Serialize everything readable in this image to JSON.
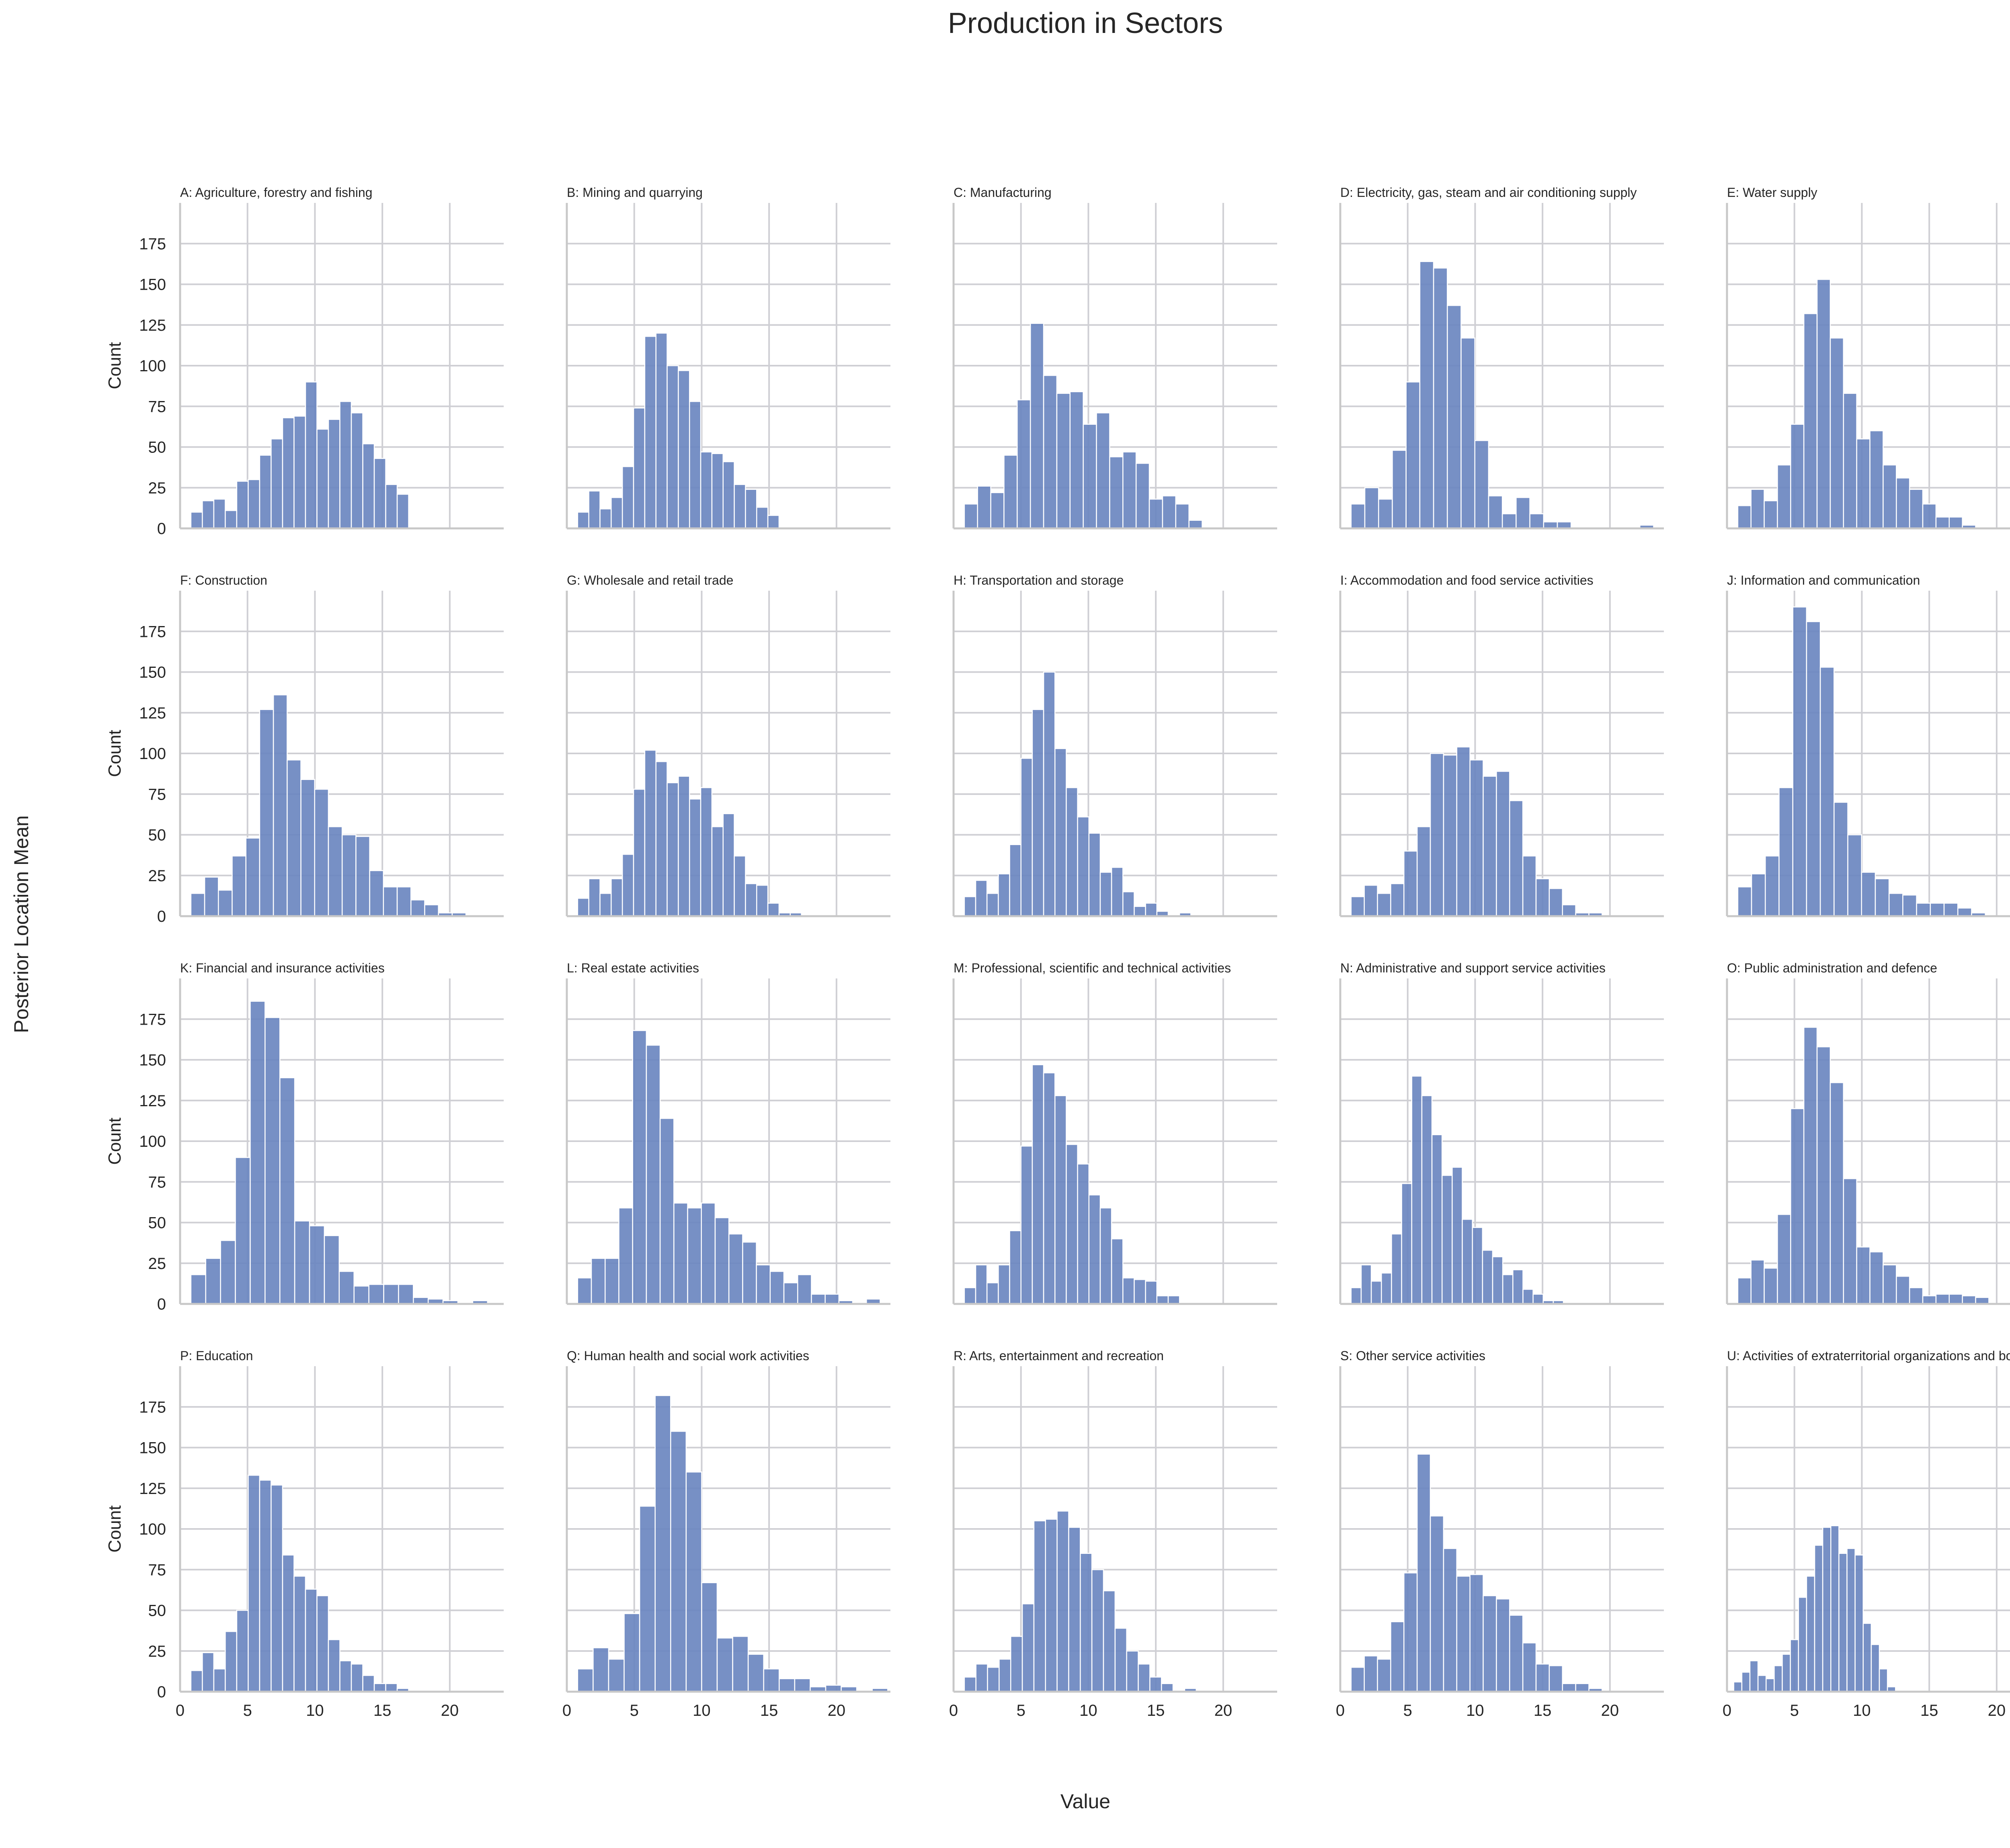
{
  "figure": {
    "title": "Production in Sectors",
    "x_label": "Value",
    "y_label": "Posterior Location Mean"
  },
  "chart_data": {
    "type": "bar",
    "subtype": "histogram-facet-grid",
    "title": "Production in Sectors",
    "xlabel": "Value",
    "ylabel": "Posterior Location Mean",
    "panel_ylabel": "Count",
    "xlim": [
      0,
      24
    ],
    "ylim": [
      0,
      200
    ],
    "x_ticks": [
      0,
      5,
      10,
      15,
      20
    ],
    "y_ticks": [
      0,
      25,
      50,
      75,
      100,
      125,
      150,
      175
    ],
    "grid": true,
    "bar_color": "#6b87c0",
    "grid_color": "#cfcfd4",
    "axis_color": "#c8c8c8",
    "panels": [
      {
        "title": "A: Agriculture, forestry and fishing",
        "bin_start": 0.8,
        "bin_width": 0.85,
        "counts": [
          10,
          17,
          18,
          11,
          29,
          30,
          45,
          55,
          68,
          69,
          90,
          61,
          67,
          78,
          71,
          52,
          43,
          27,
          21
        ]
      },
      {
        "title": "B: Mining and quarrying",
        "bin_start": 0.8,
        "bin_width": 0.83,
        "counts": [
          10,
          23,
          12,
          19,
          38,
          74,
          118,
          120,
          100,
          97,
          78,
          47,
          46,
          41,
          27,
          24,
          13,
          8
        ]
      },
      {
        "title": "C: Manufacturing",
        "bin_start": 0.8,
        "bin_width": 0.98,
        "counts": [
          15,
          26,
          22,
          45,
          79,
          126,
          94,
          83,
          84,
          64,
          71,
          44,
          47,
          40,
          18,
          20,
          15,
          5
        ]
      },
      {
        "title": "D: Electricity, gas, steam and air conditioning supply",
        "bin_start": 0.8,
        "bin_width": 1.02,
        "counts": [
          15,
          25,
          18,
          48,
          90,
          164,
          160,
          137,
          117,
          54,
          20,
          9,
          19,
          9,
          4,
          4,
          0,
          0,
          0,
          0,
          0,
          2
        ]
      },
      {
        "title": "E: Water supply",
        "bin_start": 0.8,
        "bin_width": 0.98,
        "counts": [
          14,
          24,
          17,
          39,
          64,
          132,
          153,
          117,
          83,
          55,
          60,
          39,
          31,
          24,
          15,
          7,
          7,
          2
        ]
      },
      {
        "title": "F: Construction",
        "bin_start": 0.8,
        "bin_width": 1.02,
        "counts": [
          14,
          24,
          16,
          37,
          48,
          127,
          136,
          96,
          84,
          78,
          55,
          50,
          49,
          28,
          18,
          18,
          10,
          7,
          2,
          2
        ]
      },
      {
        "title": "G: Wholesale and retail trade",
        "bin_start": 0.8,
        "bin_width": 0.83,
        "counts": [
          11,
          23,
          14,
          23,
          38,
          78,
          102,
          95,
          82,
          86,
          72,
          79,
          55,
          63,
          37,
          20,
          19,
          8,
          2,
          2
        ]
      },
      {
        "title": "H: Transportation and storage",
        "bin_start": 0.8,
        "bin_width": 0.84,
        "counts": [
          12,
          22,
          14,
          26,
          44,
          97,
          127,
          150,
          103,
          79,
          61,
          51,
          27,
          30,
          15,
          6,
          8,
          3,
          0,
          2
        ]
      },
      {
        "title": "I: Accommodation and food service activities",
        "bin_start": 0.8,
        "bin_width": 0.98,
        "counts": [
          12,
          19,
          14,
          20,
          40,
          55,
          100,
          99,
          104,
          96,
          86,
          89,
          71,
          37,
          23,
          17,
          7,
          2,
          2
        ]
      },
      {
        "title": "J: Information and communication",
        "bin_start": 0.8,
        "bin_width": 1.02,
        "counts": [
          18,
          26,
          37,
          79,
          190,
          181,
          153,
          70,
          50,
          27,
          23,
          14,
          13,
          8,
          8,
          8,
          5,
          2
        ]
      },
      {
        "title": "K: Financial and insurance activities",
        "bin_start": 0.8,
        "bin_width": 1.1,
        "counts": [
          18,
          28,
          39,
          90,
          186,
          176,
          139,
          51,
          48,
          42,
          20,
          11,
          12,
          12,
          12,
          4,
          3,
          2,
          0,
          2
        ]
      },
      {
        "title": "L: Real estate activities",
        "bin_start": 0.8,
        "bin_width": 1.02,
        "counts": [
          16,
          28,
          28,
          59,
          168,
          159,
          114,
          62,
          59,
          62,
          53,
          43,
          38,
          24,
          20,
          13,
          18,
          6,
          6,
          2,
          0,
          3
        ]
      },
      {
        "title": "M: Professional, scientific and technical activities",
        "bin_start": 0.8,
        "bin_width": 0.84,
        "counts": [
          10,
          24,
          13,
          24,
          45,
          97,
          147,
          142,
          128,
          98,
          86,
          67,
          59,
          40,
          16,
          15,
          14,
          5,
          5
        ]
      },
      {
        "title": "N: Administrative and support service activities",
        "bin_start": 0.8,
        "bin_width": 0.75,
        "counts": [
          10,
          24,
          14,
          19,
          43,
          74,
          140,
          128,
          104,
          79,
          84,
          52,
          47,
          33,
          29,
          18,
          21,
          9,
          6,
          2,
          2
        ]
      },
      {
        "title": "O: Public administration and defence",
        "bin_start": 0.8,
        "bin_width": 0.98,
        "counts": [
          16,
          27,
          22,
          55,
          120,
          170,
          158,
          136,
          77,
          35,
          32,
          24,
          17,
          10,
          5,
          6,
          6,
          5,
          4,
          0,
          0,
          2
        ]
      },
      {
        "title": "P: Education",
        "bin_start": 0.8,
        "bin_width": 0.85,
        "counts": [
          13,
          24,
          14,
          37,
          50,
          133,
          130,
          127,
          84,
          71,
          63,
          59,
          32,
          19,
          17,
          10,
          5,
          5,
          2
        ]
      },
      {
        "title": "Q: Human health and social work activities",
        "bin_start": 0.8,
        "bin_width": 1.15,
        "counts": [
          14,
          27,
          20,
          48,
          114,
          182,
          160,
          135,
          67,
          33,
          34,
          23,
          14,
          8,
          8,
          3,
          4,
          3,
          0,
          2
        ]
      },
      {
        "title": "R: Arts, entertainment and recreation",
        "bin_start": 0.8,
        "bin_width": 0.86,
        "counts": [
          9,
          17,
          15,
          20,
          34,
          54,
          105,
          106,
          111,
          101,
          85,
          75,
          62,
          39,
          25,
          17,
          9,
          5,
          0,
          2
        ]
      },
      {
        "title": "S: Other service activities",
        "bin_start": 0.8,
        "bin_width": 0.98,
        "counts": [
          15,
          22,
          20,
          43,
          73,
          146,
          108,
          88,
          71,
          72,
          59,
          57,
          47,
          30,
          17,
          16,
          5,
          5,
          2,
          0
        ]
      },
      {
        "title": "U: Activities of extraterritorial organizations and bodies",
        "bin_start": 0.5,
        "bin_width": 0.6,
        "counts": [
          6,
          12,
          19,
          10,
          8,
          16,
          23,
          32,
          58,
          71,
          90,
          101,
          102,
          85,
          88,
          84,
          42,
          29,
          14,
          3
        ]
      }
    ]
  }
}
